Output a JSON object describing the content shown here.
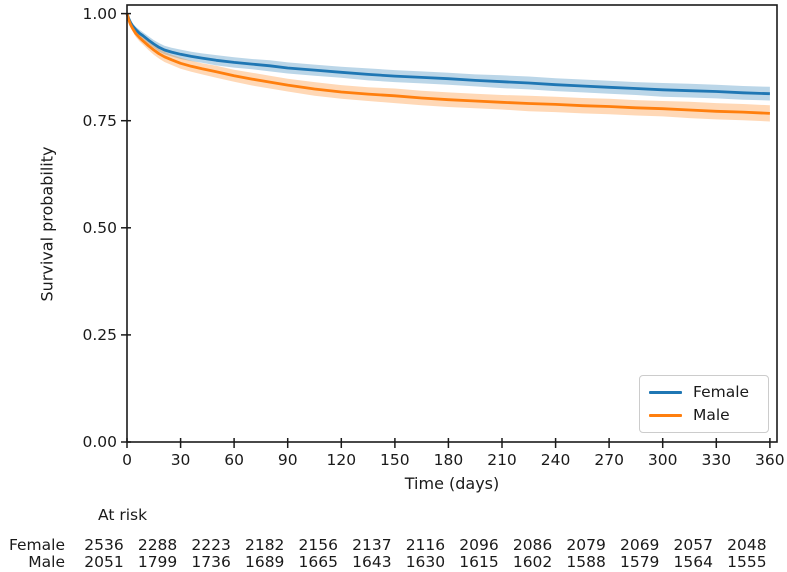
{
  "chart_data": {
    "type": "line",
    "subtype": "kaplan-meier-survival",
    "title": "",
    "xlabel": "Time (days)",
    "ylabel": "Survival probability",
    "xlim": [
      0,
      364
    ],
    "ylim": [
      0,
      1.02
    ],
    "grid": false,
    "x_ticks": [
      0,
      30,
      60,
      90,
      120,
      150,
      180,
      210,
      240,
      270,
      300,
      330,
      360
    ],
    "y_tick_values": [
      1.0,
      0.75,
      0.5,
      0.25,
      0.0
    ],
    "y_tick_labels": [
      "1.00",
      "0.75",
      "0.50",
      "0.25",
      "0.00"
    ],
    "x": [
      0,
      1,
      2,
      3,
      5,
      7,
      9,
      12,
      15,
      18,
      21,
      25,
      30,
      36,
      42,
      50,
      60,
      70,
      80,
      90,
      105,
      120,
      135,
      150,
      165,
      180,
      195,
      210,
      225,
      240,
      255,
      270,
      285,
      300,
      315,
      330,
      345,
      360
    ],
    "series": [
      {
        "name": "Female",
        "color": "#1f77b4",
        "values": [
          1.0,
          0.988,
          0.979,
          0.972,
          0.962,
          0.954,
          0.948,
          0.938,
          0.929,
          0.921,
          0.915,
          0.91,
          0.905,
          0.9,
          0.896,
          0.891,
          0.886,
          0.882,
          0.878,
          0.873,
          0.868,
          0.863,
          0.858,
          0.854,
          0.851,
          0.848,
          0.844,
          0.841,
          0.838,
          0.834,
          0.831,
          0.828,
          0.825,
          0.822,
          0.82,
          0.818,
          0.815,
          0.813
        ],
        "ci_half": [
          0,
          0.004,
          0.005,
          0.006,
          0.007,
          0.008,
          0.008,
          0.009,
          0.009,
          0.01,
          0.01,
          0.01,
          0.011,
          0.011,
          0.011,
          0.012,
          0.012,
          0.012,
          0.013,
          0.013,
          0.013,
          0.013,
          0.014,
          0.014,
          0.014,
          0.014,
          0.014,
          0.015,
          0.015,
          0.015,
          0.015,
          0.015,
          0.015,
          0.016,
          0.016,
          0.016,
          0.016,
          0.016
        ]
      },
      {
        "name": "Male",
        "color": "#ff7f0e",
        "values": [
          1.0,
          0.985,
          0.974,
          0.966,
          0.953,
          0.944,
          0.936,
          0.925,
          0.915,
          0.906,
          0.899,
          0.892,
          0.884,
          0.877,
          0.871,
          0.864,
          0.855,
          0.847,
          0.84,
          0.833,
          0.824,
          0.817,
          0.812,
          0.808,
          0.803,
          0.799,
          0.796,
          0.793,
          0.79,
          0.788,
          0.785,
          0.783,
          0.78,
          0.778,
          0.775,
          0.772,
          0.77,
          0.767
        ],
        "ci_half": [
          0,
          0.005,
          0.006,
          0.007,
          0.008,
          0.009,
          0.009,
          0.01,
          0.011,
          0.011,
          0.012,
          0.012,
          0.013,
          0.013,
          0.013,
          0.014,
          0.014,
          0.015,
          0.015,
          0.015,
          0.016,
          0.016,
          0.016,
          0.017,
          0.017,
          0.017,
          0.017,
          0.017,
          0.018,
          0.018,
          0.018,
          0.018,
          0.018,
          0.018,
          0.019,
          0.019,
          0.019,
          0.019
        ]
      }
    ],
    "ci_opacity": 0.3,
    "legend": {
      "position": "lower right",
      "entries": [
        "Female",
        "Male"
      ]
    }
  },
  "at_risk_table": {
    "header": "At risk",
    "time_points": [
      0,
      30,
      60,
      90,
      120,
      150,
      180,
      210,
      240,
      270,
      300,
      330,
      360
    ],
    "rows": [
      {
        "label": "Female",
        "counts": [
          2536,
          2288,
          2223,
          2182,
          2156,
          2137,
          2116,
          2096,
          2086,
          2079,
          2069,
          2057,
          2048
        ]
      },
      {
        "label": "Male",
        "counts": [
          2051,
          1799,
          1736,
          1689,
          1665,
          1643,
          1630,
          1615,
          1602,
          1588,
          1579,
          1564,
          1555
        ]
      }
    ]
  }
}
